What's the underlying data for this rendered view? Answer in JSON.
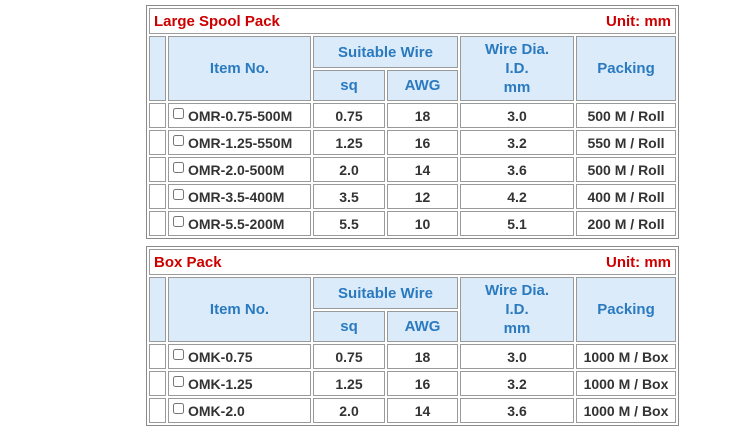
{
  "tables": [
    {
      "title": "Large Spool Pack",
      "unit": "Unit: mm",
      "headers": {
        "item_no": "Item No.",
        "suitable_wire": "Suitable Wire",
        "sq": "sq",
        "awg": "AWG",
        "wire_dia": [
          "Wire Dia.",
          "I.D.",
          "mm"
        ],
        "packing": "Packing"
      },
      "rows": [
        [
          "OMR-0.75-500M",
          "0.75",
          "18",
          "3.0",
          "500 M / Roll"
        ],
        [
          "OMR-1.25-550M",
          "1.25",
          "16",
          "3.2",
          "550 M / Roll"
        ],
        [
          "OMR-2.0-500M",
          "2.0",
          "14",
          "3.6",
          "500 M / Roll"
        ],
        [
          "OMR-3.5-400M",
          "3.5",
          "12",
          "4.2",
          "400 M / Roll"
        ],
        [
          "OMR-5.5-200M",
          "5.5",
          "10",
          "5.1",
          "200 M / Roll"
        ]
      ]
    },
    {
      "title": "Box Pack",
      "unit": "Unit: mm",
      "headers": {
        "item_no": "Item No.",
        "suitable_wire": "Suitable Wire",
        "sq": "sq",
        "awg": "AWG",
        "wire_dia": [
          "Wire Dia.",
          "I.D.",
          "mm"
        ],
        "packing": "Packing"
      },
      "rows": [
        [
          "OMK-0.75",
          "0.75",
          "18",
          "3.0",
          "1000 M / Box"
        ],
        [
          "OMK-1.25",
          "1.25",
          "16",
          "3.2",
          "1000 M / Box"
        ],
        [
          "OMK-2.0",
          "2.0",
          "14",
          "3.6",
          "1000 M / Box"
        ]
      ]
    }
  ]
}
